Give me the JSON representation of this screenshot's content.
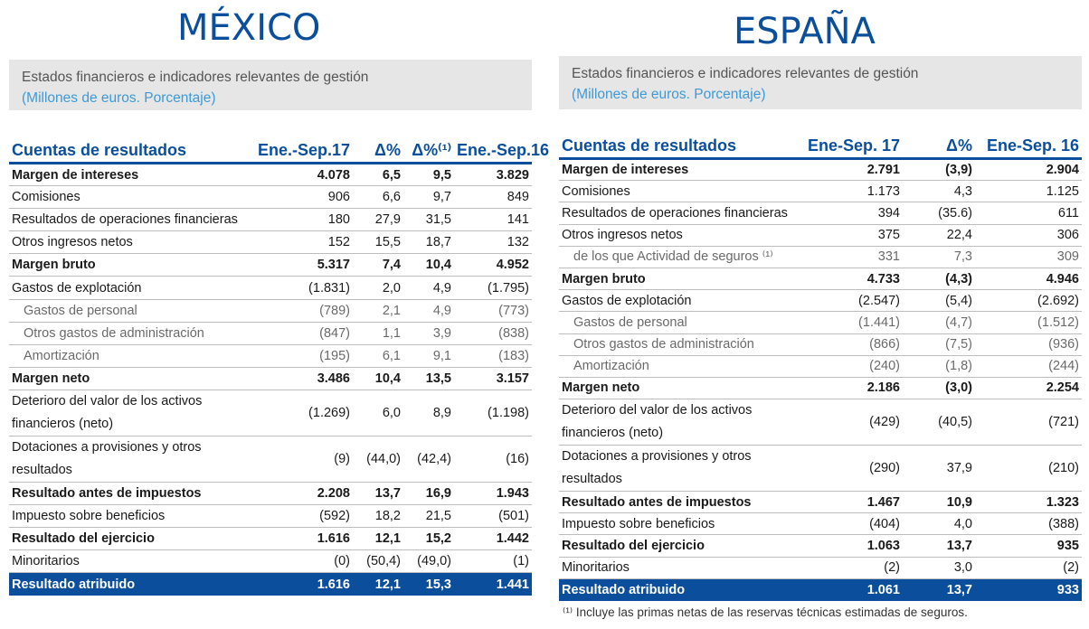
{
  "mexico": {
    "country": "MÉXICO",
    "info_title": "Estados financieros e indicadores relevantes de gestión",
    "info_subtitle": "(Millones de euros. Porcentaje)",
    "headers": [
      "Cuentas de resultados",
      "Ene.-Sep.17",
      "Δ%",
      "Δ%⁽¹⁾",
      "Ene.-Sep.16"
    ],
    "rows": [
      {
        "label": "Margen de intereses",
        "values": [
          "4.078",
          "6,5",
          "9,5",
          "3.829"
        ],
        "style": "bold"
      },
      {
        "label": "Comisiones",
        "values": [
          "906",
          "6,6",
          "9,7",
          "849"
        ],
        "style": "normal"
      },
      {
        "label": "Resultados de operaciones financieras",
        "values": [
          "180",
          "27,9",
          "31,5",
          "141"
        ],
        "style": "normal"
      },
      {
        "label": "Otros ingresos netos",
        "values": [
          "152",
          "15,5",
          "18,7",
          "132"
        ],
        "style": "normal"
      },
      {
        "label": "Margen bruto",
        "values": [
          "5.317",
          "7,4",
          "10,4",
          "4.952"
        ],
        "style": "bold"
      },
      {
        "label": "Gastos de explotación",
        "values": [
          "(1.831)",
          "2,0",
          "4,9",
          "(1.795)"
        ],
        "style": "normal"
      },
      {
        "label": "Gastos de personal",
        "values": [
          "(789)",
          "2,1",
          "4,9",
          "(773)"
        ],
        "style": "indent"
      },
      {
        "label": "Otros gastos de administración",
        "values": [
          "(847)",
          "1,1",
          "3,9",
          "(838)"
        ],
        "style": "indent"
      },
      {
        "label": "Amortización",
        "values": [
          "(195)",
          "6,1",
          "9,1",
          "(183)"
        ],
        "style": "indent"
      },
      {
        "label": "Margen neto",
        "values": [
          "3.486",
          "10,4",
          "13,5",
          "3.157"
        ],
        "style": "bold"
      },
      {
        "label": "Deterioro del valor de los activos financieros (neto)",
        "values": [
          "(1.269)",
          "6,0",
          "8,9",
          "(1.198)"
        ],
        "style": "two"
      },
      {
        "label": "Dotaciones a provisiones y otros resultados",
        "values": [
          "(9)",
          "(44,0)",
          "(42,4)",
          "(16)"
        ],
        "style": "two"
      },
      {
        "label": "Resultado antes de impuestos",
        "values": [
          "2.208",
          "13,7",
          "16,9",
          "1.943"
        ],
        "style": "bold"
      },
      {
        "label": "Impuesto sobre beneficios",
        "values": [
          "(592)",
          "18,2",
          "21,5",
          "(501)"
        ],
        "style": "normal"
      },
      {
        "label": "Resultado del ejercicio",
        "values": [
          "1.616",
          "12,1",
          "15,2",
          "1.442"
        ],
        "style": "bold"
      },
      {
        "label": "Minoritarios",
        "values": [
          "(0)",
          "(50,4)",
          "(49,0)",
          "(1)"
        ],
        "style": "normal"
      },
      {
        "label": "Resultado atribuido",
        "values": [
          "1.616",
          "12,1",
          "15,3",
          "1.441"
        ],
        "style": "total"
      }
    ]
  },
  "spain": {
    "country": "ESPAÑA",
    "info_title": "Estados financieros e indicadores relevantes de gestión",
    "info_subtitle": "(Millones de euros. Porcentaje)",
    "headers": [
      "Cuentas de resultados",
      "Ene-Sep. 17",
      "Δ%",
      "Ene-Sep. 16"
    ],
    "rows": [
      {
        "label": "Margen de intereses",
        "values": [
          "2.791",
          "(3,9)",
          "2.904"
        ],
        "style": "bold"
      },
      {
        "label": "Comisiones",
        "values": [
          "1.173",
          "4,3",
          "1.125"
        ],
        "style": "normal"
      },
      {
        "label": "Resultados de operaciones financieras",
        "values": [
          "394",
          "(35.6)",
          "611"
        ],
        "style": "normal"
      },
      {
        "label": "Otros ingresos netos",
        "values": [
          "375",
          "22,4",
          "306"
        ],
        "style": "normal"
      },
      {
        "label": "de los que Actividad de seguros ⁽¹⁾",
        "values": [
          "331",
          "7,3",
          "309"
        ],
        "style": "indent"
      },
      {
        "label": "Margen bruto",
        "values": [
          "4.733",
          "(4,3)",
          "4.946"
        ],
        "style": "bold"
      },
      {
        "label": "Gastos de explotación",
        "values": [
          "(2.547)",
          "(5,4)",
          "(2.692)"
        ],
        "style": "normal"
      },
      {
        "label": "Gastos de personal",
        "values": [
          "(1.441)",
          "(4,7)",
          "(1.512)"
        ],
        "style": "indent"
      },
      {
        "label": "Otros gastos de administración",
        "values": [
          "(866)",
          "(7,5)",
          "(936)"
        ],
        "style": "indent"
      },
      {
        "label": "Amortización",
        "values": [
          "(240)",
          "(1,8)",
          "(244)"
        ],
        "style": "indent"
      },
      {
        "label": "Margen neto",
        "values": [
          "2.186",
          "(3,0)",
          "2.254"
        ],
        "style": "bold"
      },
      {
        "label": "Deterioro del valor de los activos financieros (neto)",
        "values": [
          "(429)",
          "(40,5)",
          "(721)"
        ],
        "style": "two"
      },
      {
        "label": "Dotaciones a provisiones y otros resultados",
        "values": [
          "(290)",
          "37,9",
          "(210)"
        ],
        "style": "two"
      },
      {
        "label": "Resultado antes de impuestos",
        "values": [
          "1.467",
          "10,9",
          "1.323"
        ],
        "style": "bold"
      },
      {
        "label": "Impuesto sobre beneficios",
        "values": [
          "(404)",
          "4,0",
          "(388)"
        ],
        "style": "normal"
      },
      {
        "label": "Resultado del ejercicio",
        "values": [
          "1.063",
          "13,7",
          "935"
        ],
        "style": "bold"
      },
      {
        "label": "Minoritarios",
        "values": [
          "(2)",
          "3,0",
          "(2)"
        ],
        "style": "normal"
      },
      {
        "label": "Resultado atribuido",
        "values": [
          "1.061",
          "13,7",
          "933"
        ],
        "style": "total"
      }
    ],
    "footnote": "⁽¹⁾ Incluye las primas netas de las reservas técnicas estimadas de seguros."
  }
}
